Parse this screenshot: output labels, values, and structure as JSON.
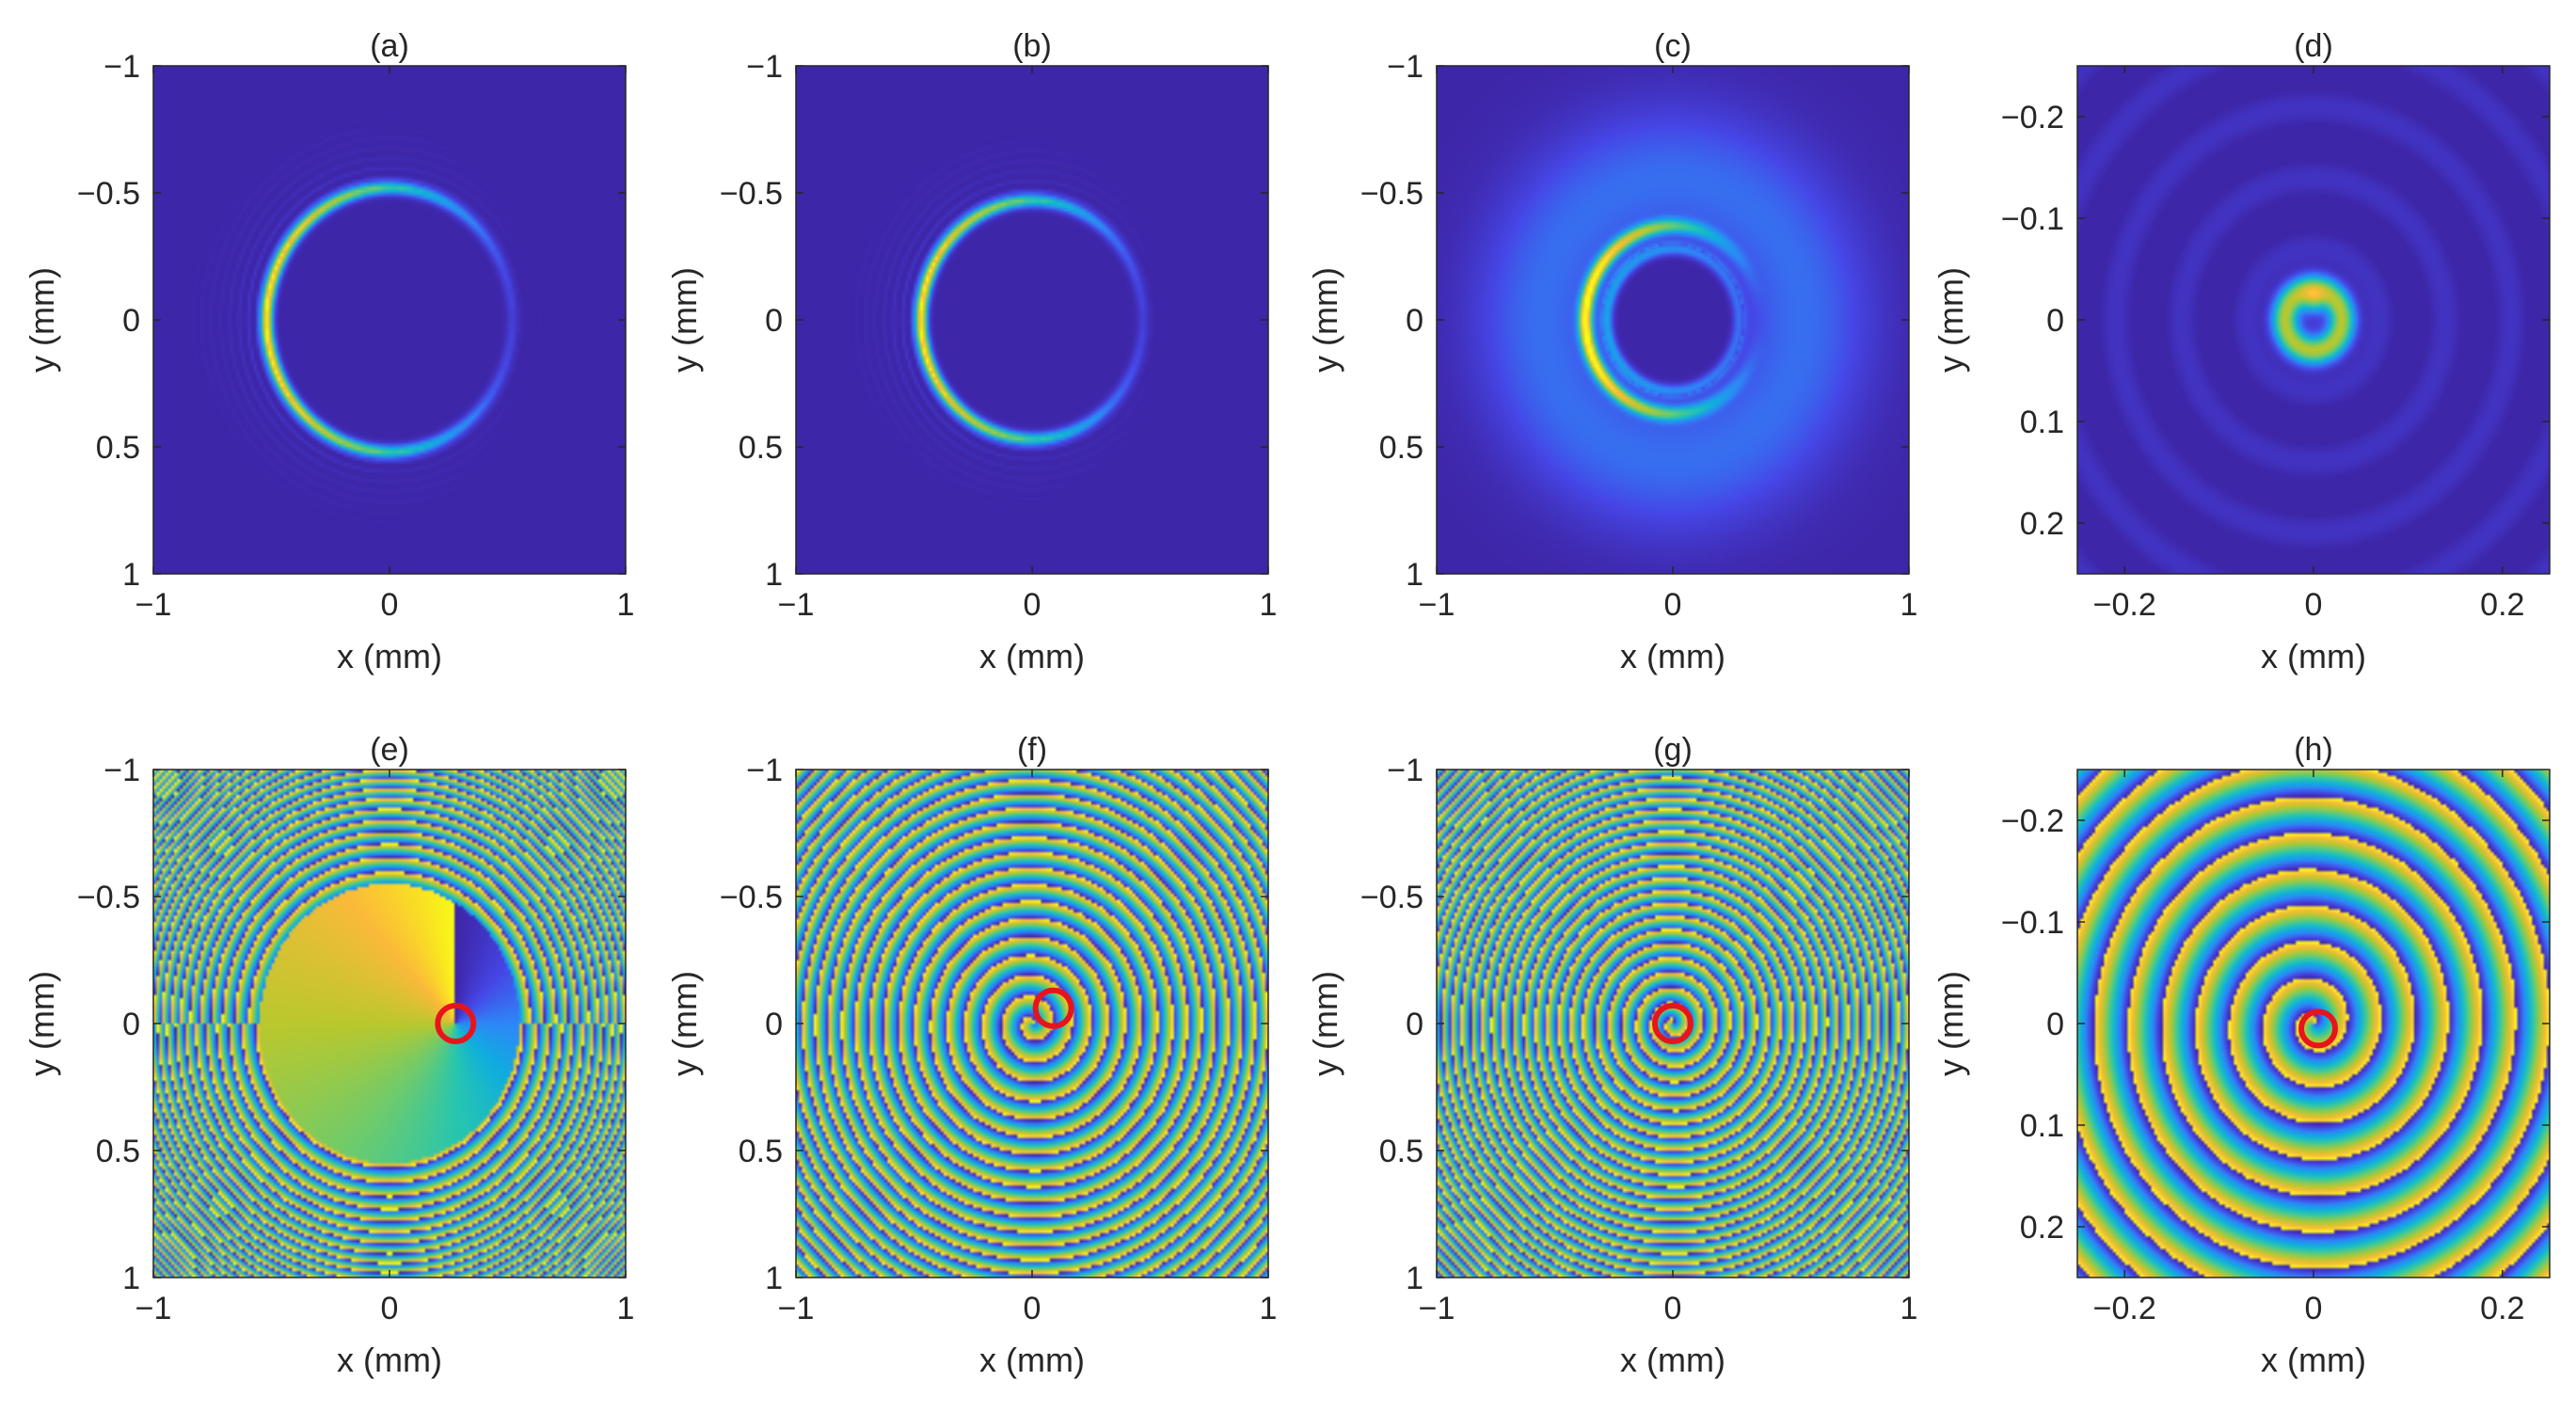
{
  "chart_data": [
    {
      "type": "heatmap",
      "title": "(a)",
      "quantity": "intensity",
      "xlabel": "x (mm)",
      "ylabel": "y (mm)",
      "xlim": [
        -1,
        1
      ],
      "ylim": [
        -1,
        1
      ],
      "y_direction": "reversed",
      "xticks": [
        "−1",
        "0",
        "1"
      ],
      "yticks": [
        "−1",
        "−0.5",
        "0",
        "0.5",
        "1"
      ],
      "pattern": {
        "kind": "ring",
        "radius_mm": 0.52,
        "brightest_side": "left",
        "outer_fringes": true
      },
      "colors": [
        "#3e26a8",
        "#2e87f7",
        "#28c6ae",
        "#bac82d",
        "#f9fb15"
      ]
    },
    {
      "type": "heatmap",
      "title": "(b)",
      "quantity": "intensity",
      "xlabel": "x (mm)",
      "ylabel": "y (mm)",
      "xlim": [
        -1,
        1
      ],
      "ylim": [
        -1,
        1
      ],
      "y_direction": "reversed",
      "xticks": [
        "−1",
        "0",
        "1"
      ],
      "yticks": [
        "−1",
        "−0.5",
        "0",
        "0.5",
        "1"
      ],
      "pattern": {
        "kind": "ring",
        "radius_mm": 0.47,
        "brightest_side": "left",
        "halo": true
      }
    },
    {
      "type": "heatmap",
      "title": "(c)",
      "quantity": "intensity",
      "xlabel": "x (mm)",
      "ylabel": "y (mm)",
      "xlim": [
        -1,
        1
      ],
      "ylim": [
        -1,
        1
      ],
      "y_direction": "reversed",
      "xticks": [
        "−1",
        "0",
        "1"
      ],
      "yticks": [
        "−1",
        "−0.5",
        "0",
        "0.5",
        "1"
      ],
      "pattern": {
        "kind": "double-ring",
        "radius_mm": [
          0.37,
          0.28
        ],
        "brightest_side": "left",
        "halo": true
      }
    },
    {
      "type": "heatmap",
      "title": "(d)",
      "quantity": "intensity",
      "xlabel": "x (mm)",
      "ylabel": "y (mm)",
      "xlim": [
        -0.25,
        0.25
      ],
      "ylim": [
        -0.25,
        0.25
      ],
      "y_direction": "reversed",
      "xticks": [
        "−0.2",
        "0",
        "0.2"
      ],
      "yticks": [
        "−0.2",
        "−0.1",
        "0",
        "0.1",
        "0.2"
      ],
      "pattern": {
        "kind": "focal-spot",
        "radius_mm": 0.03,
        "faint_rings": true
      }
    },
    {
      "type": "heatmap",
      "title": "(e)",
      "quantity": "phase",
      "xlabel": "x (mm)",
      "ylabel": "y (mm)",
      "xlim": [
        -1,
        1
      ],
      "ylim": [
        -1,
        1
      ],
      "y_direction": "reversed",
      "xticks": [
        "−1",
        "0",
        "1"
      ],
      "yticks": [
        "−1",
        "−0.5",
        "0",
        "0.5",
        "1"
      ],
      "pattern": {
        "kind": "phase-disk",
        "disk_radius_mm": 0.55,
        "outer_rings": true
      },
      "marker": {
        "shape": "circle",
        "color": "#e8141c",
        "x_mm": 0.28,
        "y_mm": 0.0
      }
    },
    {
      "type": "heatmap",
      "title": "(f)",
      "quantity": "phase",
      "xlabel": "x (mm)",
      "ylabel": "y (mm)",
      "xlim": [
        -1,
        1
      ],
      "ylim": [
        -1,
        1
      ],
      "y_direction": "reversed",
      "xticks": [
        "−1",
        "0",
        "1"
      ],
      "yticks": [
        "−1",
        "−0.5",
        "0",
        "0.5",
        "1"
      ],
      "pattern": {
        "kind": "spiral-rings"
      },
      "marker": {
        "shape": "circle",
        "color": "#e8141c",
        "x_mm": 0.09,
        "y_mm": -0.06
      }
    },
    {
      "type": "heatmap",
      "title": "(g)",
      "quantity": "phase",
      "xlabel": "x (mm)",
      "ylabel": "y (mm)",
      "xlim": [
        -1,
        1
      ],
      "ylim": [
        -1,
        1
      ],
      "y_direction": "reversed",
      "xticks": [
        "−1",
        "0",
        "1"
      ],
      "yticks": [
        "−1",
        "−0.5",
        "0",
        "0.5",
        "1"
      ],
      "pattern": {
        "kind": "spiral-rings-dense"
      },
      "marker": {
        "shape": "circle",
        "color": "#e8141c",
        "x_mm": 0.0,
        "y_mm": 0.0
      }
    },
    {
      "type": "heatmap",
      "title": "(h)",
      "quantity": "phase",
      "xlabel": "x (mm)",
      "ylabel": "y (mm)",
      "xlim": [
        -0.25,
        0.25
      ],
      "ylim": [
        -0.25,
        0.25
      ],
      "y_direction": "reversed",
      "xticks": [
        "−0.2",
        "0",
        "0.2"
      ],
      "yticks": [
        "−0.2",
        "−0.1",
        "0",
        "0.1",
        "0.2"
      ],
      "pattern": {
        "kind": "spiral-coarse"
      },
      "marker": {
        "shape": "circle",
        "color": "#e8141c",
        "x_mm": 0.005,
        "y_mm": 0.005
      }
    }
  ]
}
